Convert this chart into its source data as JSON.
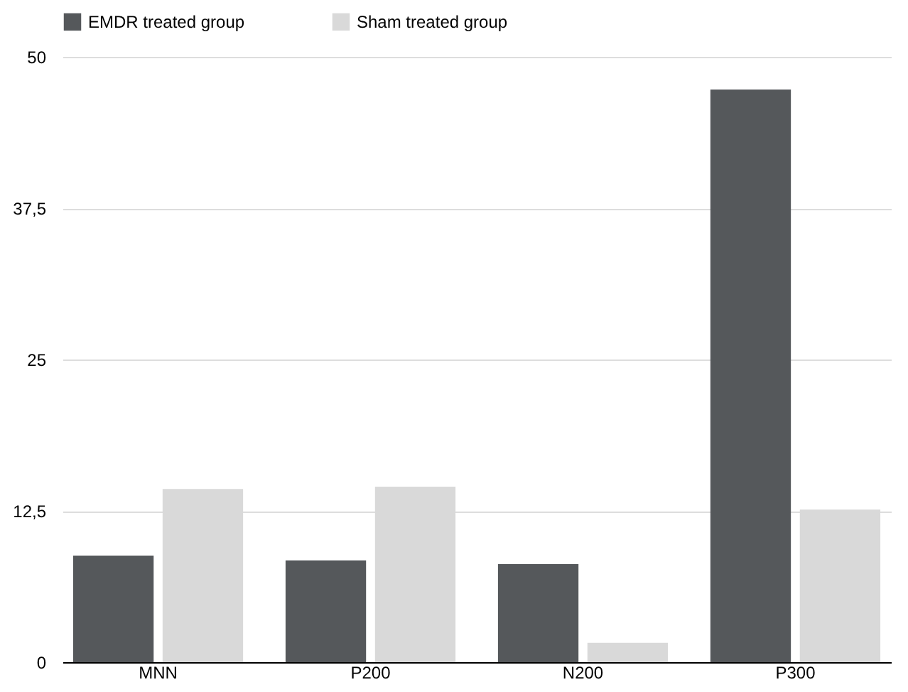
{
  "chart_data": {
    "type": "bar",
    "categories": [
      "MNN",
      "P200",
      "N200",
      "P300"
    ],
    "series": [
      {
        "name": "EMDR treated group",
        "color": "#55585b",
        "values": [
          8.8,
          8.4,
          8.1,
          47.3
        ]
      },
      {
        "name": "Sham treated group",
        "color": "#d9d9d9",
        "values": [
          14.3,
          14.5,
          1.6,
          12.6
        ]
      }
    ],
    "ylim": [
      0,
      50
    ],
    "yticks": [
      0,
      {
        "value": 12.5,
        "label": "12,5"
      },
      25,
      {
        "value": 37.5,
        "label": "37,5"
      },
      50
    ],
    "grid": "y",
    "legend": "top"
  }
}
